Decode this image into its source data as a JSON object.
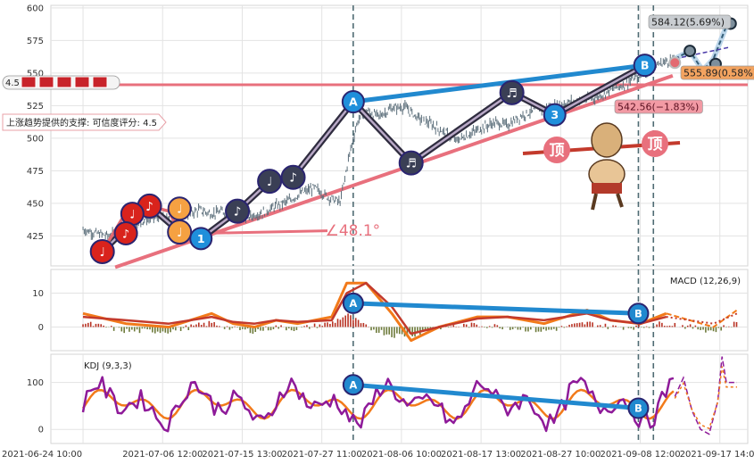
{
  "chart_data": {
    "type": "candlestick",
    "panels": {
      "price": {
        "yticks": [
          425,
          450,
          475,
          500,
          525,
          550,
          575,
          600
        ],
        "ylim": [
          402,
          602
        ],
        "close_path": [
          [
            0.0,
            430
          ],
          [
            0.6,
            427
          ],
          [
            1.2,
            425
          ],
          [
            1.8,
            428
          ],
          [
            2.4,
            434
          ],
          [
            3.0,
            438
          ],
          [
            3.6,
            440
          ],
          [
            4.2,
            436
          ],
          [
            4.8,
            441
          ],
          [
            5.4,
            445
          ],
          [
            6.0,
            442
          ],
          [
            6.6,
            444
          ],
          [
            7.2,
            437
          ],
          [
            7.8,
            440
          ],
          [
            8.4,
            443
          ],
          [
            9.0,
            448
          ],
          [
            9.6,
            452
          ],
          [
            10.2,
            458
          ],
          [
            10.8,
            462
          ],
          [
            11.4,
            455
          ],
          [
            12.0,
            451
          ],
          [
            12.4,
            486
          ],
          [
            12.8,
            513
          ],
          [
            13.2,
            521
          ],
          [
            13.8,
            517
          ],
          [
            14.4,
            523
          ],
          [
            15.0,
            524
          ],
          [
            15.6,
            516
          ],
          [
            16.2,
            511
          ],
          [
            16.8,
            505
          ],
          [
            17.4,
            498
          ],
          [
            18.0,
            503
          ],
          [
            18.6,
            508
          ],
          [
            19.2,
            512
          ],
          [
            19.8,
            510
          ],
          [
            20.4,
            517
          ],
          [
            21.0,
            521
          ],
          [
            21.6,
            523
          ],
          [
            22.2,
            526
          ],
          [
            22.8,
            528
          ],
          [
            23.4,
            529
          ],
          [
            24.0,
            532
          ],
          [
            24.6,
            537
          ],
          [
            25.2,
            541
          ],
          [
            25.8,
            547
          ],
          [
            26.4,
            553
          ],
          [
            27.0,
            558
          ],
          [
            27.6,
            561
          ]
        ],
        "pattern_points": [
          {
            "x": 0.9,
            "y": 413,
            "kind": "note",
            "color": "#d9231c",
            "label": "♩"
          },
          {
            "x": 3.1,
            "y": 448,
            "kind": "note",
            "color": "#d9231c",
            "label": "♪"
          },
          {
            "x": 4.5,
            "y": 428,
            "kind": "note",
            "color": "#f5a142",
            "label": "♩"
          },
          {
            "x": 5.5,
            "y": 423,
            "kind": "numbered",
            "color": "#1f8fdb",
            "label": "1"
          },
          {
            "x": 7.2,
            "y": 444,
            "kind": "note",
            "color": "#3a3f55",
            "label": "♪"
          },
          {
            "x": 8.7,
            "y": 467,
            "kind": "note",
            "color": "#3a3f55",
            "label": "♩"
          },
          {
            "x": 9.8,
            "y": 470,
            "kind": "note",
            "color": "#3a3f55",
            "label": "♪"
          },
          {
            "x": 12.6,
            "y": 528,
            "kind": "letter",
            "color": "#1f8fdb",
            "label": "A"
          },
          {
            "x": 15.3,
            "y": 481,
            "kind": "note",
            "color": "#3a3f55",
            "label": "♬"
          },
          {
            "x": 20.0,
            "y": 535,
            "kind": "note",
            "color": "#3a3f55",
            "label": "♬"
          },
          {
            "x": 22.0,
            "y": 518,
            "kind": "numbered",
            "color": "#1f8fdb",
            "label": "3"
          },
          {
            "x": 26.2,
            "y": 556,
            "kind": "letter",
            "color": "#1f8fdb",
            "label": "B"
          }
        ],
        "support_line": {
          "from": [
            1.5,
            401
          ],
          "to": [
            27.5,
            548
          ]
        },
        "resistance_line_y": 541,
        "angle_label": "∠48.1°",
        "annotations": {
          "support_text": "上涨趋势提供的支撑: 可信度评分: 4.5",
          "score_badge": "4.5",
          "target_high": "584.12(5.69%)",
          "target_mid": "555.89(0.58%)",
          "target_low": "542.56(−1.83%)",
          "top_label": "顶"
        },
        "projection": {
          "path": [
            [
              27.6,
              561
            ],
            [
              28.3,
              567
            ],
            [
              28.9,
              552
            ],
            [
              29.4,
              561
            ],
            [
              30.0,
              586
            ]
          ],
          "forecast_points": [
            {
              "x": 28.3,
              "y": 567
            },
            {
              "x": 29.5,
              "y": 557
            },
            {
              "x": 30.2,
              "y": 588
            }
          ]
        }
      },
      "macd": {
        "title": "MACD (12,26,9)",
        "yticks": [
          0,
          10
        ],
        "ylim": [
          -7,
          17
        ],
        "line1": [
          [
            0,
            4
          ],
          [
            2,
            1
          ],
          [
            4,
            0
          ],
          [
            6,
            4
          ],
          [
            7,
            1
          ],
          [
            8,
            0
          ],
          [
            9,
            2
          ],
          [
            10,
            1
          ],
          [
            11.6,
            3
          ],
          [
            12.3,
            13
          ],
          [
            13.2,
            13
          ],
          [
            14.4,
            4
          ],
          [
            15.3,
            -4
          ],
          [
            16.6,
            0
          ],
          [
            18.4,
            3
          ],
          [
            19.8,
            3
          ],
          [
            21.5,
            1
          ],
          [
            23.5,
            5
          ],
          [
            24.6,
            2
          ],
          [
            26.0,
            1
          ],
          [
            27.2,
            4
          ],
          [
            29.4,
            0
          ],
          [
            30.5,
            5
          ]
        ],
        "line2": [
          [
            0,
            3
          ],
          [
            2,
            2
          ],
          [
            4,
            1
          ],
          [
            6,
            3
          ],
          [
            7,
            1.5
          ],
          [
            8,
            1
          ],
          [
            9,
            2
          ],
          [
            10,
            1.5
          ],
          [
            11.6,
            2
          ],
          [
            12.3,
            10
          ],
          [
            13.2,
            13
          ],
          [
            14.4,
            6
          ],
          [
            15.3,
            -2
          ],
          [
            16.6,
            0
          ],
          [
            18.4,
            2.5
          ],
          [
            19.8,
            3
          ],
          [
            21.5,
            2
          ],
          [
            23.5,
            4
          ],
          [
            24.6,
            2
          ],
          [
            26.0,
            1
          ],
          [
            27.2,
            3
          ],
          [
            29.4,
            1
          ],
          [
            30.5,
            4
          ]
        ],
        "divergence": {
          "from_x": 12.6,
          "from_y": 7,
          "to_x": 25.9,
          "to_y": 4,
          "labels": [
            "A",
            "B"
          ]
        }
      },
      "kdj": {
        "title": "KDJ (9,3,3)",
        "yticks": [
          0,
          100
        ],
        "ylim": [
          -30,
          160
        ],
        "divergence": {
          "from_x": 12.6,
          "from_y": 95,
          "to_x": 25.9,
          "to_y": 45,
          "labels": [
            "A",
            "B"
          ]
        }
      }
    },
    "x_ticks": [
      "2021-06-24 10:00",
      "2021-07-06 12:00",
      "2021-07-15 13:00",
      "2021-07-27 11:00",
      "2021-08-06 10:00",
      "2021-08-17 13:00",
      "2021-08-27 10:00",
      "2021-09-08 12:00",
      "2021-09-17 14:00"
    ],
    "xlim": [
      -1.5,
      31.0
    ],
    "vlines": [
      12.6,
      25.9,
      26.6
    ],
    "colors": {
      "line_primary": "#f27a1a",
      "line_secondary": "#c33a2c",
      "kdj_j": "#8e1a99",
      "bar_pos": "#b83223",
      "bar_neg": "#6d7a3a",
      "trend_blue": "#2189cf",
      "trend_red": "#e8707d",
      "pattern_dark": "#2f2c3f"
    }
  }
}
